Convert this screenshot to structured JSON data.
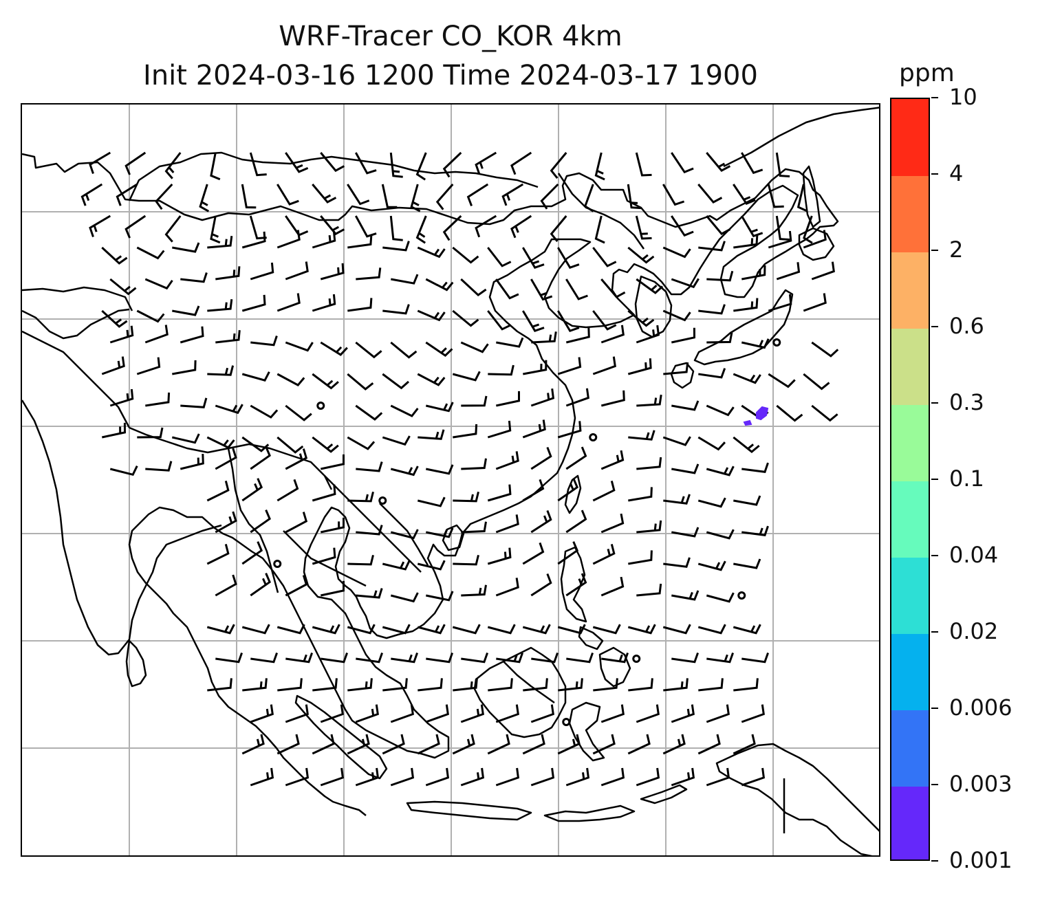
{
  "title_line1": "WRF-Tracer CO_KOR 4km",
  "title_line2": "Init 2024-03-16 1200 Time 2024-03-17 1900",
  "colorbar": {
    "unit": "ppm",
    "levels": [
      "0.001",
      "0.003",
      "0.006",
      "0.02",
      "0.04",
      "0.1",
      "0.3",
      "0.6",
      "2",
      "4",
      "10"
    ],
    "colors": [
      "#6528fa",
      "#3374f6",
      "#05b1ee",
      "#2ddfd5",
      "#66fbbc",
      "#99fb99",
      "#cbe089",
      "#fdb165",
      "#ff7139",
      "#ff2a16"
    ]
  },
  "map": {
    "gridlines": "on",
    "grid_color": "#b0b0b0",
    "features": [
      "coastlines",
      "country-borders",
      "wind-barbs",
      "co-tracer-contours"
    ],
    "tracer_patch_color": "#6528fa"
  }
}
